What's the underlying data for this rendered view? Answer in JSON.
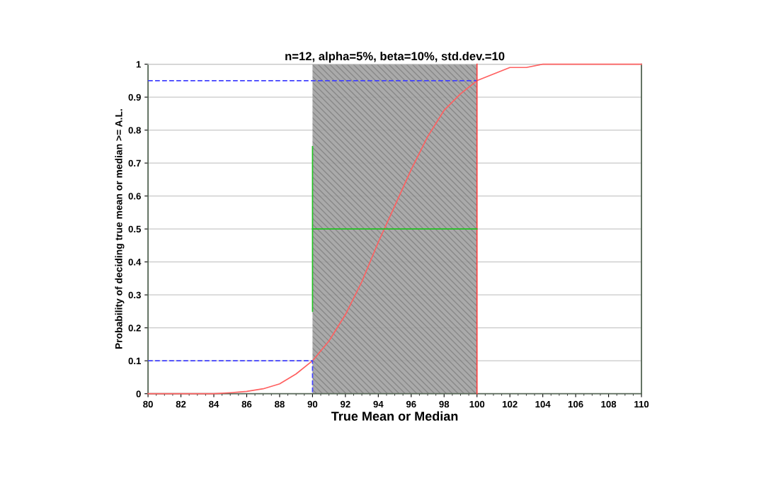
{
  "chart_data": {
    "type": "line",
    "title": "n=12, alpha=5%, beta=10%, std.dev.=10",
    "xlabel": "True Mean or Median",
    "ylabel": "Probability of deciding true mean or median >= A.L.",
    "xlim": [
      80,
      110
    ],
    "xticks": [
      80,
      82,
      84,
      86,
      88,
      90,
      92,
      94,
      96,
      98,
      100,
      102,
      104,
      106,
      108,
      110
    ],
    "ylim": [
      0,
      1
    ],
    "yticks": [
      0,
      0.1,
      0.2,
      0.3,
      0.4,
      0.5,
      0.6,
      0.7,
      0.8,
      0.9,
      1
    ],
    "grid": "y",
    "legend": false,
    "marker": "none",
    "bands": [
      {
        "axis": "x",
        "from": 90,
        "to": 100,
        "color": "#a0a0a0"
      }
    ],
    "series": [
      {
        "color": "#ff6060",
        "line_style": "solid",
        "x": [
          80,
          82,
          84,
          85,
          86,
          87,
          88,
          89,
          90,
          91,
          92,
          93,
          94,
          95,
          96,
          97,
          98,
          99,
          100,
          101,
          102,
          103,
          104,
          106,
          110
        ],
        "values": [
          0,
          0,
          0,
          0.003,
          0.007,
          0.015,
          0.03,
          0.06,
          0.1,
          0.16,
          0.24,
          0.34,
          0.46,
          0.57,
          0.68,
          0.78,
          0.86,
          0.91,
          0.95,
          0.97,
          0.99,
          0.99,
          1,
          1,
          1
        ]
      },
      {
        "color": "#4040ff",
        "line_style": "dashed",
        "x": [
          80,
          90,
          90
        ],
        "values": [
          0.1,
          0.1,
          0
        ]
      },
      {
        "color": "#4040ff",
        "line_style": "dashed",
        "x": [
          80,
          100
        ],
        "values": [
          0.95,
          0.95
        ]
      },
      {
        "color": "#ff4040",
        "line_style": "solid",
        "x": [
          100,
          100
        ],
        "values": [
          0,
          1
        ]
      },
      {
        "color": "#20c020",
        "line_style": "solid",
        "x": [
          90,
          90
        ],
        "values": [
          0.25,
          0.75
        ]
      },
      {
        "color": "#20c020",
        "line_style": "solid",
        "x": [
          90,
          100
        ],
        "values": [
          0.5,
          0.5
        ]
      }
    ]
  }
}
